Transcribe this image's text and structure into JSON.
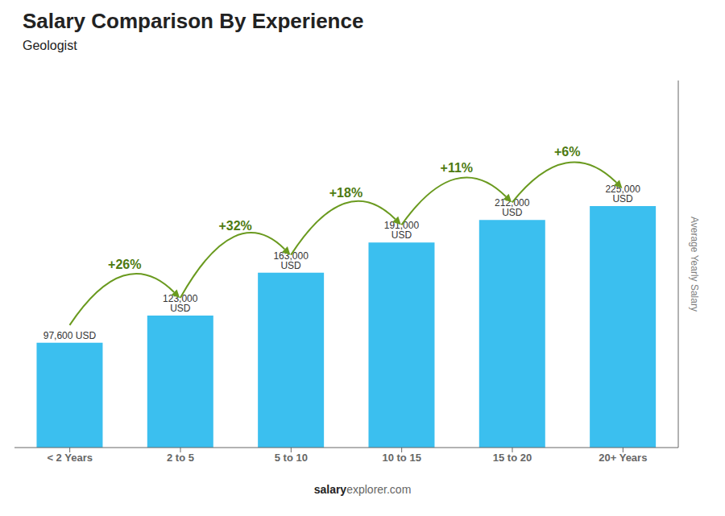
{
  "chart_data": {
    "type": "bar",
    "title": "Salary Comparison By Experience",
    "subtitle": "Geologist",
    "ylabel": "Average Yearly Salary",
    "footer": [
      "salary",
      "explorer.com"
    ],
    "categories": [
      "< 2 Years",
      "2 to 5",
      "5 to 10",
      "10 to 15",
      "15 to 20",
      "20+ Years"
    ],
    "values": [
      97600,
      123000,
      163000,
      191000,
      212000,
      225000
    ],
    "value_labels": [
      "97,600 USD",
      "123,000 USD",
      "163,000 USD",
      "191,000 USD",
      "212,000 USD",
      "225,000 USD"
    ],
    "data_labels": true,
    "annotations": [
      "+26%",
      "+32%",
      "+18%",
      "+11%",
      "+6%"
    ],
    "color": "#3bbfef",
    "ylim": [
      0,
      342000
    ],
    "tick_labels": "x",
    "grid": false
  }
}
